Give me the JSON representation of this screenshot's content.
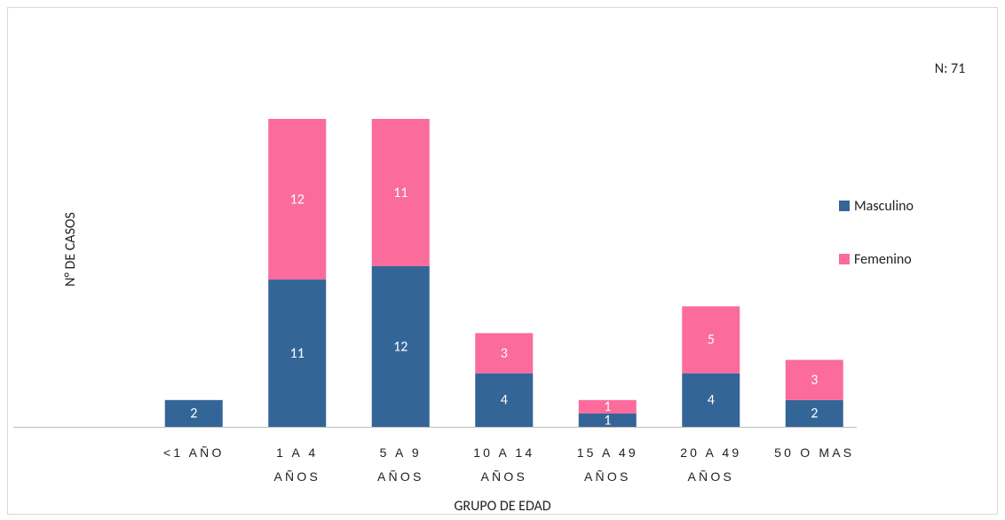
{
  "chart_data": {
    "type": "stacked_bar",
    "annotation": "N: 71",
    "y_label": "N° DE CASOS",
    "x_label": "GRUPO DE EDAD",
    "categories": [
      "<1 AÑO",
      "1 A 4 AÑOS",
      "5 A 9 AÑOS",
      "10 A 14 AÑOS",
      "15 A 49 AÑOS",
      "20 A 49 AÑOS",
      "50 O MAS"
    ],
    "series": [
      {
        "name": "Masculino",
        "color": "#346597",
        "values": [
          2,
          11,
          12,
          4,
          1,
          4,
          2
        ]
      },
      {
        "name": "Femenino",
        "color": "#fb6b9c",
        "values": [
          null,
          12,
          11,
          3,
          1,
          5,
          3
        ]
      }
    ]
  }
}
